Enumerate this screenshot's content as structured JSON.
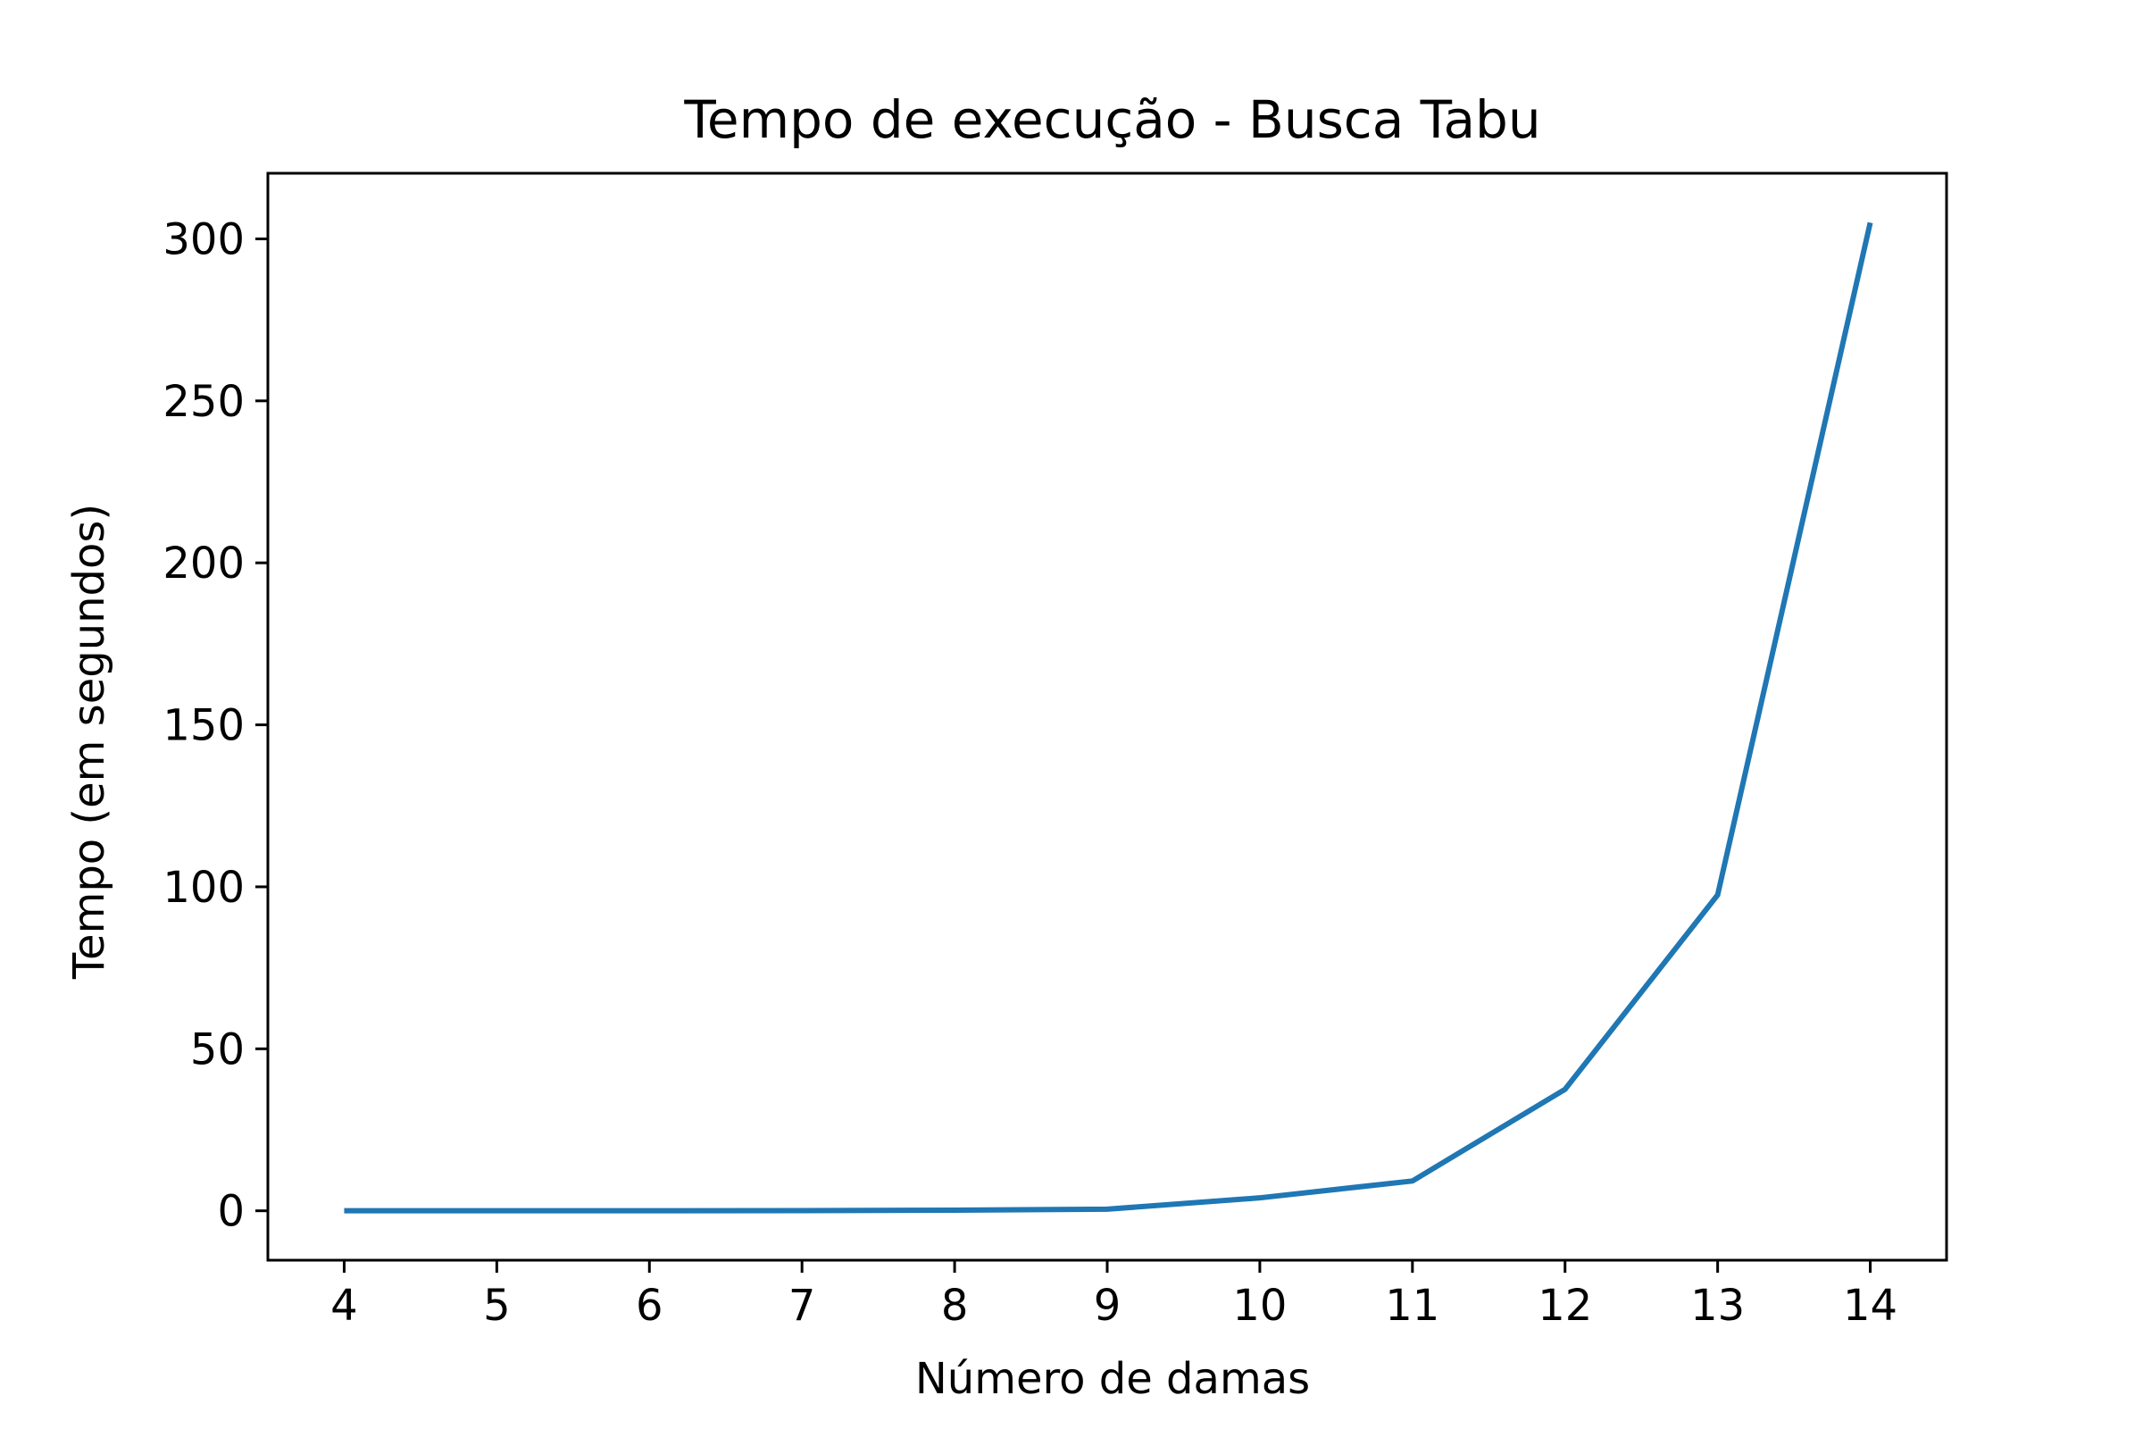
{
  "chart_data": {
    "type": "line",
    "title": "Tempo de execução - Busca Tabu",
    "xlabel": "Número de damas",
    "ylabel": "Tempo (em segundos)",
    "x": [
      4,
      5,
      6,
      7,
      8,
      9,
      10,
      11,
      12,
      13,
      14
    ],
    "series": [
      {
        "values": [
          0.0,
          0.0,
          0.0,
          0.05,
          0.2,
          0.5,
          4.0,
          9.2,
          37.5,
          97.5,
          305.0
        ]
      }
    ],
    "xticks": [
      "4",
      "5",
      "6",
      "7",
      "8",
      "9",
      "10",
      "11",
      "12",
      "13",
      "14"
    ],
    "yticks": [
      "0",
      "50",
      "100",
      "150",
      "200",
      "250",
      "300"
    ],
    "xlim": [
      3.5,
      14.5
    ],
    "ylim": [
      -15.25,
      320.25
    ],
    "grid": false,
    "legend": "none",
    "colors": {
      "line": "#1f77b4",
      "axes": "#000000",
      "background": "#ffffff"
    }
  }
}
